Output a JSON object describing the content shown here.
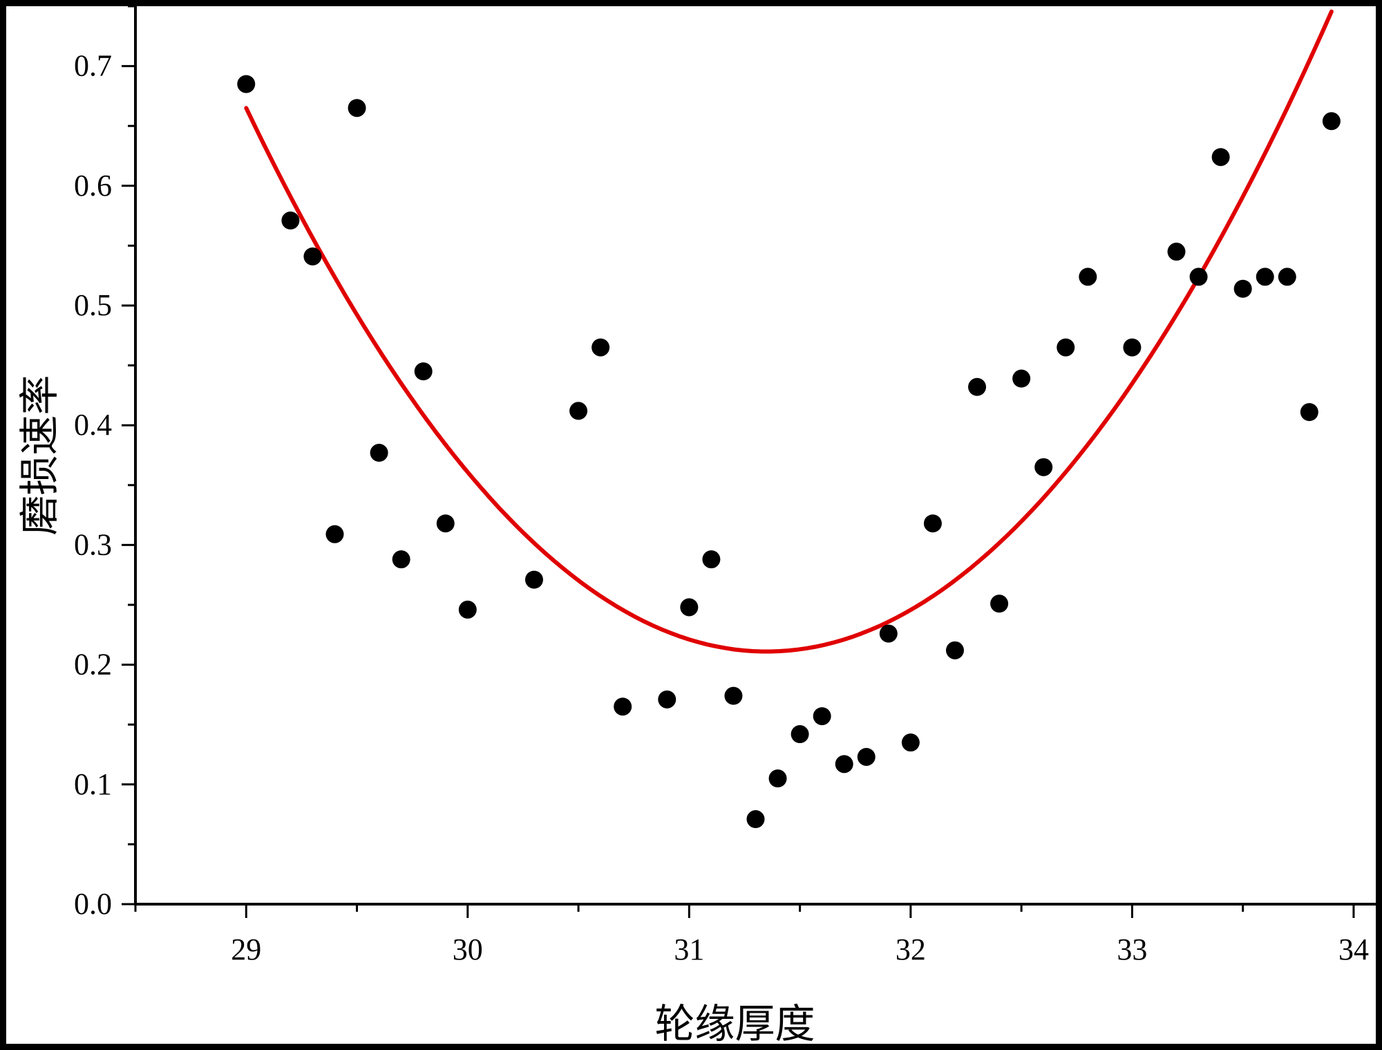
{
  "chart_data": {
    "type": "scatter",
    "title": "",
    "xlabel": "轮缘厚度",
    "ylabel": "磨损速率",
    "xlim": [
      28.5,
      34.1
    ],
    "ylim": [
      0.0,
      0.75
    ],
    "x_ticks": [
      29,
      30,
      31,
      32,
      33,
      34
    ],
    "x_tick_labels": [
      "29",
      "30",
      "31",
      "32",
      "33",
      "34"
    ],
    "y_ticks": [
      0.0,
      0.1,
      0.2,
      0.3,
      0.4,
      0.5,
      0.6,
      0.7
    ],
    "y_tick_labels": [
      "0.0",
      "0.1",
      "0.2",
      "0.3",
      "0.4",
      "0.5",
      "0.6",
      "0.7"
    ],
    "grid": false,
    "legend": "none",
    "series": [
      {
        "kind": "scatter",
        "color": "#000000",
        "points": [
          [
            29.0,
            0.685
          ],
          [
            29.2,
            0.571
          ],
          [
            29.3,
            0.541
          ],
          [
            29.4,
            0.309
          ],
          [
            29.5,
            0.665
          ],
          [
            29.6,
            0.377
          ],
          [
            29.7,
            0.288
          ],
          [
            29.8,
            0.445
          ],
          [
            29.9,
            0.318
          ],
          [
            30.0,
            0.246
          ],
          [
            30.3,
            0.271
          ],
          [
            30.5,
            0.412
          ],
          [
            30.6,
            0.465
          ],
          [
            30.7,
            0.165
          ],
          [
            30.9,
            0.171
          ],
          [
            31.0,
            0.248
          ],
          [
            31.1,
            0.288
          ],
          [
            31.2,
            0.174
          ],
          [
            31.3,
            0.071
          ],
          [
            31.4,
            0.105
          ],
          [
            31.5,
            0.142
          ],
          [
            31.6,
            0.157
          ],
          [
            31.7,
            0.117
          ],
          [
            31.8,
            0.123
          ],
          [
            31.9,
            0.226
          ],
          [
            32.0,
            0.135
          ],
          [
            32.1,
            0.318
          ],
          [
            32.2,
            0.212
          ],
          [
            32.3,
            0.432
          ],
          [
            32.4,
            0.251
          ],
          [
            32.5,
            0.439
          ],
          [
            32.6,
            0.365
          ],
          [
            32.7,
            0.465
          ],
          [
            32.8,
            0.524
          ],
          [
            33.0,
            0.465
          ],
          [
            33.2,
            0.545
          ],
          [
            33.3,
            0.524
          ],
          [
            33.4,
            0.624
          ],
          [
            33.5,
            0.514
          ],
          [
            33.6,
            0.524
          ],
          [
            33.7,
            0.524
          ],
          [
            33.8,
            0.411
          ],
          [
            33.9,
            0.654
          ]
        ]
      },
      {
        "kind": "fit-curve",
        "color": "#e00000",
        "model": "quadratic",
        "vertex": [
          31.35,
          0.211
        ],
        "coefficient": 0.0822,
        "x_range": [
          29.0,
          33.9
        ]
      }
    ]
  }
}
